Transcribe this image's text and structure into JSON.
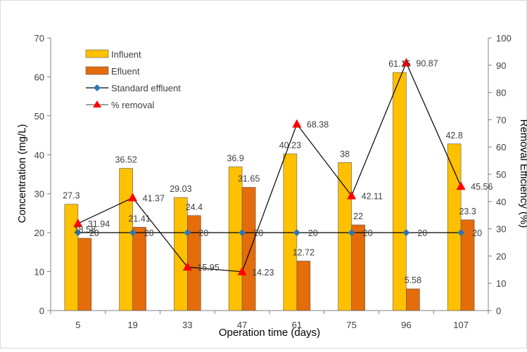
{
  "chart_data": {
    "type": "bar",
    "title": "",
    "xlabel": "Operation time (days)",
    "ylabel": "Concentration (mg/L)",
    "y2label": "Removal Efficiency (%)",
    "categories": [
      "5",
      "19",
      "33",
      "47",
      "61",
      "75",
      "96",
      "107"
    ],
    "ylim": [
      0,
      70
    ],
    "y_ticks": [
      "0",
      "10",
      "20",
      "30",
      "40",
      "50",
      "60",
      "70"
    ],
    "y2lim": [
      0,
      100
    ],
    "y2_ticks": [
      "0",
      "10",
      "20",
      "30",
      "40",
      "50",
      "60",
      "70",
      "80",
      "90",
      "100"
    ],
    "grid": false,
    "legend_position": "top-left",
    "series": [
      {
        "name": "Influent",
        "kind": "bar",
        "axis": "left",
        "color": "#FFC000",
        "values": [
          27.3,
          36.52,
          29.03,
          36.9,
          40.23,
          38,
          61.15,
          42.8
        ],
        "labels": [
          "27.3",
          "36.52",
          "29.03",
          "36.9",
          "40.23",
          "38",
          "61.15",
          "42.8"
        ]
      },
      {
        "name": "Efluent",
        "kind": "bar",
        "axis": "left",
        "color": "#E46C0A",
        "values": [
          18.58,
          21.41,
          24.4,
          31.65,
          12.72,
          22,
          5.58,
          23.3
        ],
        "labels": [
          "18.58",
          "21.41",
          "24.4",
          "31.65",
          "12.72",
          "22",
          "5.58",
          "23.3"
        ]
      },
      {
        "name": "Standard effluent",
        "kind": "line",
        "axis": "left",
        "color": "#2E75B6",
        "line_color": "#000000",
        "marker": "diamond",
        "values": [
          20,
          20,
          20,
          20,
          20,
          20,
          20,
          20
        ],
        "labels": [
          "20",
          "20",
          "20",
          "20",
          "20",
          "20",
          "20",
          "20"
        ]
      },
      {
        "name": "% removal",
        "kind": "line",
        "axis": "right",
        "color": "#FF0000",
        "line_color": "#000000",
        "marker": "triangle",
        "values": [
          31.94,
          41.37,
          15.95,
          14.23,
          68.38,
          42.11,
          90.87,
          45.56
        ],
        "labels": [
          "31.94",
          "41.37",
          "15.95",
          "14.23",
          "68.38",
          "42.11",
          "90.87",
          "45.56"
        ]
      }
    ]
  }
}
